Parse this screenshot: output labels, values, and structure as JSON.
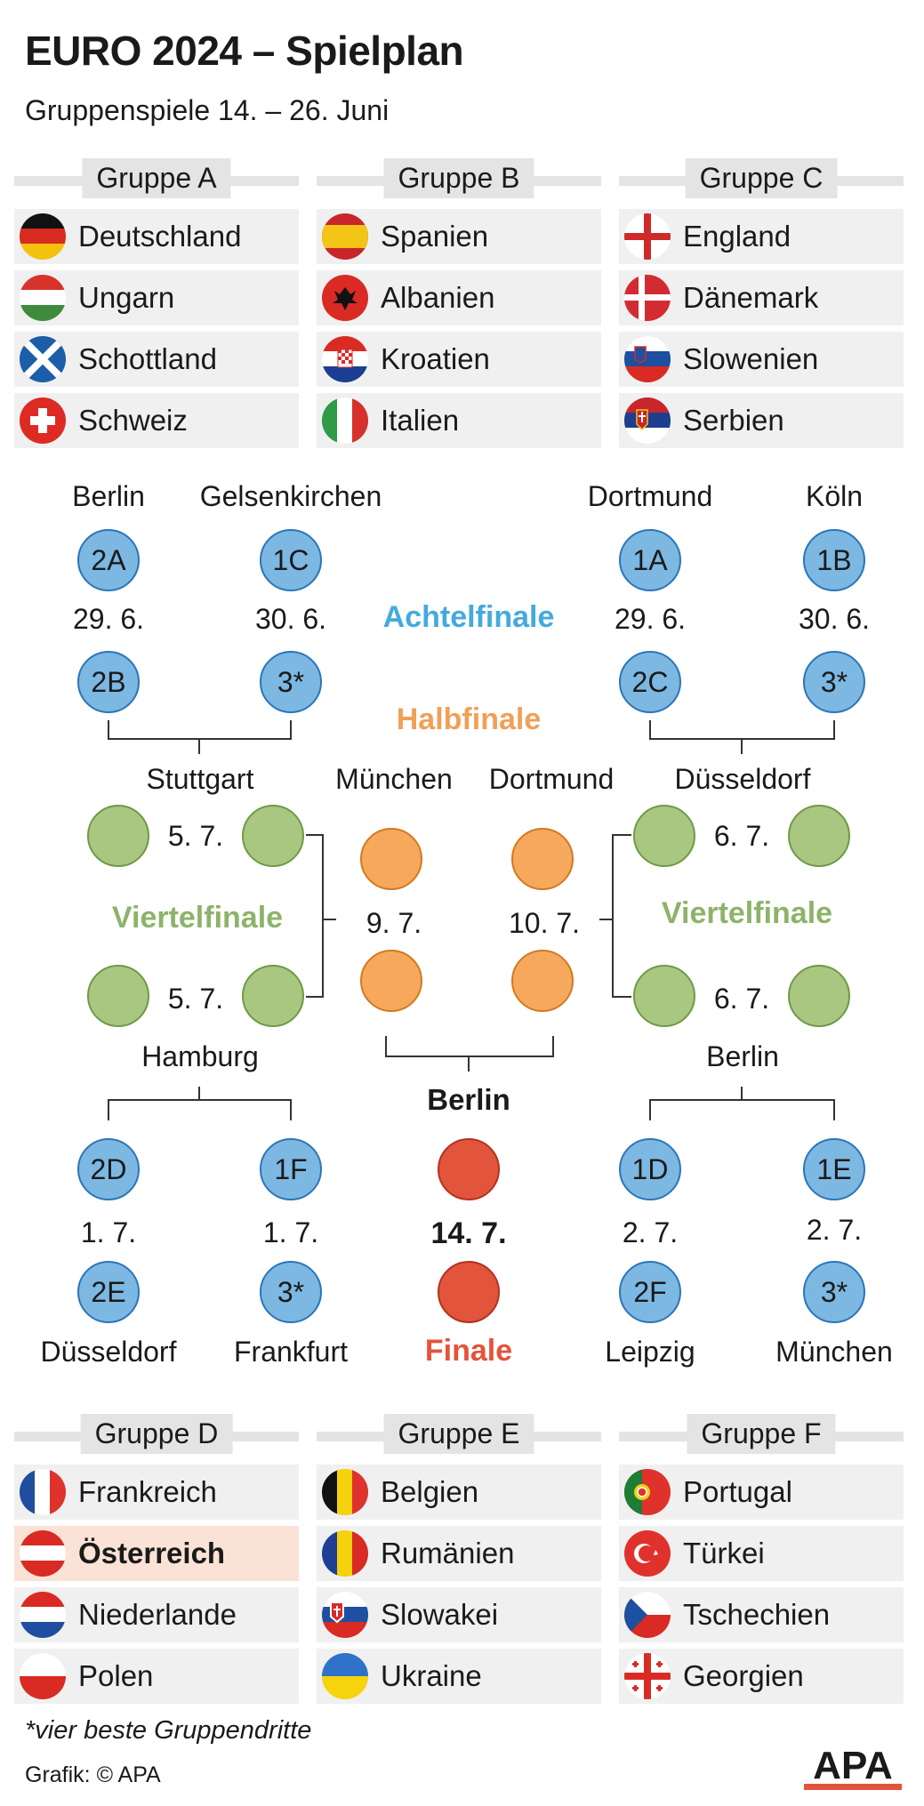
{
  "header": {
    "title": "EURO 2024 – Spielplan",
    "subtitle": "Gruppenspiele 14. – 26. Juni"
  },
  "groups": [
    {
      "name": "Gruppe A",
      "teams": [
        {
          "name": "Deutschland",
          "flag": "flag-germany"
        },
        {
          "name": "Ungarn",
          "flag": "flag-hungary"
        },
        {
          "name": "Schottland",
          "flag": "flag-scotland"
        },
        {
          "name": "Schweiz",
          "flag": "flag-switzerland"
        }
      ]
    },
    {
      "name": "Gruppe B",
      "teams": [
        {
          "name": "Spanien",
          "flag": "flag-spain"
        },
        {
          "name": "Albanien",
          "flag": "flag-albania"
        },
        {
          "name": "Kroatien",
          "flag": "flag-croatia"
        },
        {
          "name": "Italien",
          "flag": "flag-italy"
        }
      ]
    },
    {
      "name": "Gruppe C",
      "teams": [
        {
          "name": "England",
          "flag": "flag-england"
        },
        {
          "name": "Dänemark",
          "flag": "flag-denmark"
        },
        {
          "name": "Slowenien",
          "flag": "flag-slovenia"
        },
        {
          "name": "Serbien",
          "flag": "flag-serbia"
        }
      ]
    },
    {
      "name": "Gruppe D",
      "teams": [
        {
          "name": "Frankreich",
          "flag": "flag-france"
        },
        {
          "name": "Österreich",
          "flag": "flag-austria",
          "highlight": true
        },
        {
          "name": "Niederlande",
          "flag": "flag-netherlands"
        },
        {
          "name": "Polen",
          "flag": "flag-poland"
        }
      ]
    },
    {
      "name": "Gruppe E",
      "teams": [
        {
          "name": "Belgien",
          "flag": "flag-belgium"
        },
        {
          "name": "Rumänien",
          "flag": "flag-romania"
        },
        {
          "name": "Slowakei",
          "flag": "flag-slovakia"
        },
        {
          "name": "Ukraine",
          "flag": "flag-ukraine"
        }
      ]
    },
    {
      "name": "Gruppe F",
      "teams": [
        {
          "name": "Portugal",
          "flag": "flag-portugal"
        },
        {
          "name": "Türkei",
          "flag": "flag-turkey"
        },
        {
          "name": "Tschechien",
          "flag": "flag-czechia"
        },
        {
          "name": "Georgien",
          "flag": "flag-georgia"
        }
      ]
    }
  ],
  "bracket": {
    "rounds": {
      "achtelfinale": "Achtelfinale",
      "halbfinale": "Halbfinale",
      "viertelfinale": "Viertelfinale",
      "finale": "Finale"
    },
    "r16_top": [
      {
        "city": "Berlin",
        "home": "2A",
        "away": "2B",
        "date": "29. 6."
      },
      {
        "city": "Gelsenkirchen",
        "home": "1C",
        "away": "3*",
        "date": "30. 6."
      },
      {
        "city": "Dortmund",
        "home": "1A",
        "away": "2C",
        "date": "29. 6."
      },
      {
        "city": "Köln",
        "home": "1B",
        "away": "3*",
        "date": "30. 6."
      }
    ],
    "r16_bottom": [
      {
        "city": "Düsseldorf",
        "home": "2D",
        "away": "2E",
        "date": "1. 7."
      },
      {
        "city": "Frankfurt",
        "home": "1F",
        "away": "3*",
        "date": "1. 7."
      },
      {
        "city": "Leipzig",
        "home": "1D",
        "away": "2F",
        "date": "2. 7."
      },
      {
        "city": "München",
        "home": "1E",
        "away": "3*",
        "date": "2. 7."
      }
    ],
    "quarter": {
      "left_top": {
        "city": "Stuttgart",
        "date": "5. 7."
      },
      "left_bottom": {
        "city": "Hamburg",
        "date": "5. 7."
      },
      "right_top": {
        "city": "Düsseldorf",
        "date": "6. 7."
      },
      "right_bottom": {
        "city": "Berlin",
        "date": "6. 7."
      }
    },
    "semi": {
      "left": {
        "city": "München",
        "date": "9. 7."
      },
      "right": {
        "city": "Dortmund",
        "date": "10. 7."
      }
    },
    "final": {
      "city": "Berlin",
      "date": "14. 7."
    },
    "colors": {
      "r16": "#7cb8e2",
      "quarter": "#a9c781",
      "semi": "#f6a95c",
      "final": "#e2543b"
    }
  },
  "footer": {
    "footnote": "*vier beste Gruppendritte",
    "credit": "Grafik: © APA",
    "logo": "APA"
  }
}
